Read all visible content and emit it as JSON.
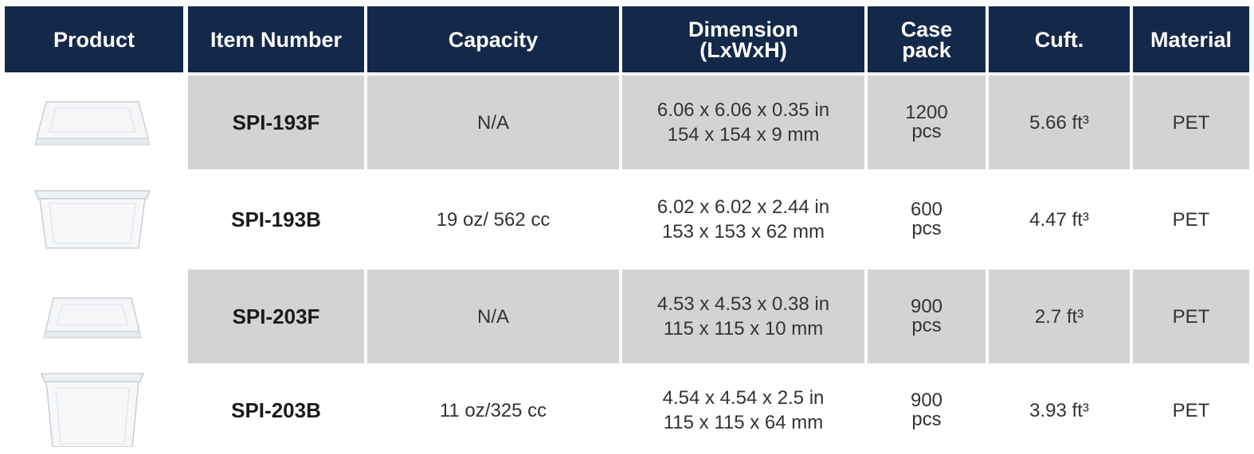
{
  "headers": {
    "product": "Product",
    "item_number": "Item Number",
    "capacity": "Capacity",
    "dimension_line1": "Dimension",
    "dimension_line2": "(LxWxH)",
    "case_pack_line1": "Case",
    "case_pack_line2": "pack",
    "cuft": "Cuft.",
    "material": "Material"
  },
  "rows": [
    {
      "product_image": "flat-lid-image",
      "item_number": "SPI-193F",
      "capacity": "N/A",
      "dimension_in": "6.06 x 6.06 x 0.35 in",
      "dimension_mm": "154 x 154 x 9 mm",
      "case_pack_qty": "1200",
      "case_pack_unit": "pcs",
      "cuft": "5.66 ft³",
      "material": "PET"
    },
    {
      "product_image": "container-base-image",
      "item_number": "SPI-193B",
      "capacity": "19 oz/ 562 cc",
      "dimension_in": "6.02 x 6.02 x 2.44 in",
      "dimension_mm": "153 x 153 x 62 mm",
      "case_pack_qty": "600",
      "case_pack_unit": "pcs",
      "cuft": "4.47 ft³",
      "material": "PET"
    },
    {
      "product_image": "flat-lid-image",
      "item_number": "SPI-203F",
      "capacity": "N/A",
      "dimension_in": "4.53 x 4.53 x 0.38 in",
      "dimension_mm": "115 x 115 x 10 mm",
      "case_pack_qty": "900",
      "case_pack_unit": "pcs",
      "cuft": "2.7 ft³",
      "material": "PET"
    },
    {
      "product_image": "container-base-image",
      "item_number": "SPI-203B",
      "capacity": "11 oz/325 cc",
      "dimension_in": "4.54 x 4.54 x 2.5 in",
      "dimension_mm": "115 x 115 x 64 mm",
      "case_pack_qty": "900",
      "case_pack_unit": "pcs",
      "cuft": "3.93 ft³",
      "material": "PET"
    }
  ],
  "colors": {
    "header_bg": "#14284a",
    "header_text": "#ffffff",
    "row_shade": "#d3d3d3"
  }
}
